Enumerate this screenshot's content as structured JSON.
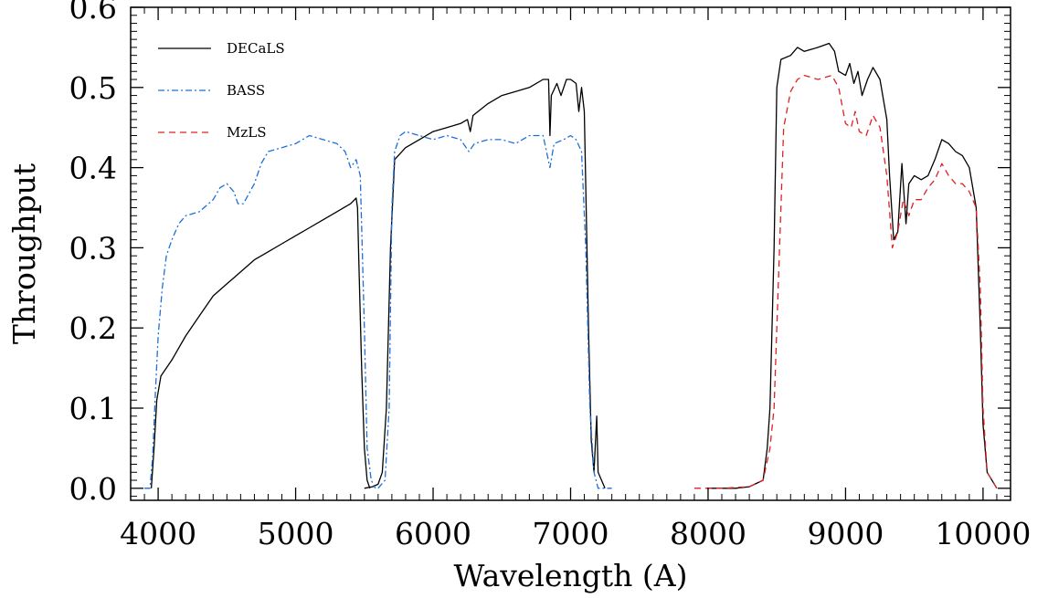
{
  "chart_data": {
    "type": "line",
    "xlabel": "Wavelength (A)",
    "ylabel": "Throughput",
    "xlim": [
      3800,
      10200
    ],
    "ylim": [
      -0.015,
      0.6
    ],
    "x_ticks": [
      4000,
      5000,
      6000,
      7000,
      8000,
      9000,
      10000
    ],
    "x_tick_labels": [
      "4000",
      "5000",
      "6000",
      "7000",
      "8000",
      "9000",
      "10000"
    ],
    "y_ticks": [
      0.0,
      0.1,
      0.2,
      0.3,
      0.4,
      0.5,
      0.6
    ],
    "y_tick_labels": [
      "0.0",
      "0.1",
      "0.2",
      "0.3",
      "0.4",
      "0.5",
      "0.6"
    ],
    "grid": false,
    "legend_position": "top-left",
    "series": [
      {
        "name": "DECaLS",
        "color": "#000000",
        "style": "solid",
        "segments": [
          [
            [
              3950,
              0.0
            ],
            [
              3970,
              0.05
            ],
            [
              3990,
              0.11
            ],
            [
              4020,
              0.14
            ],
            [
              4100,
              0.16
            ],
            [
              4200,
              0.19
            ],
            [
              4300,
              0.215
            ],
            [
              4400,
              0.24
            ],
            [
              4500,
              0.255
            ],
            [
              4600,
              0.27
            ],
            [
              4700,
              0.285
            ],
            [
              4800,
              0.295
            ],
            [
              4900,
              0.305
            ],
            [
              5000,
              0.315
            ],
            [
              5100,
              0.325
            ],
            [
              5200,
              0.335
            ],
            [
              5300,
              0.345
            ],
            [
              5400,
              0.355
            ],
            [
              5440,
              0.362
            ],
            [
              5450,
              0.35
            ],
            [
              5460,
              0.28
            ],
            [
              5480,
              0.15
            ],
            [
              5500,
              0.05
            ],
            [
              5520,
              0.01
            ],
            [
              5540,
              0.0
            ]
          ],
          [
            [
              5500,
              0.0
            ],
            [
              5560,
              0.002
            ],
            [
              5600,
              0.005
            ],
            [
              5630,
              0.02
            ],
            [
              5660,
              0.1
            ],
            [
              5690,
              0.3
            ],
            [
              5720,
              0.41
            ],
            [
              5800,
              0.425
            ],
            [
              5900,
              0.435
            ],
            [
              6000,
              0.445
            ],
            [
              6100,
              0.45
            ],
            [
              6200,
              0.455
            ],
            [
              6250,
              0.46
            ],
            [
              6270,
              0.445
            ],
            [
              6290,
              0.465
            ],
            [
              6400,
              0.48
            ],
            [
              6500,
              0.49
            ],
            [
              6600,
              0.495
            ],
            [
              6700,
              0.5
            ],
            [
              6800,
              0.51
            ],
            [
              6840,
              0.51
            ],
            [
              6850,
              0.44
            ],
            [
              6860,
              0.49
            ],
            [
              6900,
              0.505
            ],
            [
              6930,
              0.49
            ],
            [
              6970,
              0.51
            ],
            [
              7000,
              0.51
            ],
            [
              7040,
              0.505
            ],
            [
              7060,
              0.47
            ],
            [
              7080,
              0.5
            ],
            [
              7100,
              0.47
            ],
            [
              7130,
              0.2
            ],
            [
              7150,
              0.06
            ],
            [
              7170,
              0.02
            ],
            [
              7190,
              0.09
            ],
            [
              7200,
              0.02
            ],
            [
              7250,
              0.0
            ]
          ],
          [
            [
              8000,
              0.0
            ],
            [
              8100,
              0.0
            ],
            [
              8200,
              0.0
            ],
            [
              8300,
              0.002
            ],
            [
              8400,
              0.01
            ],
            [
              8430,
              0.05
            ],
            [
              8450,
              0.1
            ],
            [
              8480,
              0.3
            ],
            [
              8500,
              0.5
            ],
            [
              8530,
              0.535
            ],
            [
              8600,
              0.54
            ],
            [
              8650,
              0.55
            ],
            [
              8700,
              0.545
            ],
            [
              8800,
              0.55
            ],
            [
              8880,
              0.555
            ],
            [
              8920,
              0.545
            ],
            [
              8950,
              0.52
            ],
            [
              9000,
              0.515
            ],
            [
              9030,
              0.53
            ],
            [
              9060,
              0.505
            ],
            [
              9090,
              0.52
            ],
            [
              9120,
              0.49
            ],
            [
              9160,
              0.51
            ],
            [
              9200,
              0.525
            ],
            [
              9250,
              0.51
            ],
            [
              9300,
              0.46
            ],
            [
              9320,
              0.39
            ],
            [
              9350,
              0.31
            ],
            [
              9380,
              0.32
            ],
            [
              9410,
              0.405
            ],
            [
              9440,
              0.33
            ],
            [
              9460,
              0.38
            ],
            [
              9500,
              0.39
            ],
            [
              9550,
              0.385
            ],
            [
              9600,
              0.39
            ],
            [
              9650,
              0.41
            ],
            [
              9700,
              0.435
            ],
            [
              9750,
              0.43
            ],
            [
              9800,
              0.42
            ],
            [
              9850,
              0.415
            ],
            [
              9900,
              0.4
            ],
            [
              9950,
              0.35
            ],
            [
              9980,
              0.2
            ],
            [
              10000,
              0.08
            ],
            [
              10030,
              0.02
            ],
            [
              10100,
              0.0
            ]
          ]
        ]
      },
      {
        "name": "BASS",
        "color": "#1f6fd6",
        "style": "dashdot",
        "segments": [
          [
            [
              3900,
              0.0
            ],
            [
              3940,
              0.0
            ],
            [
              3960,
              0.04
            ],
            [
              3980,
              0.12
            ],
            [
              4000,
              0.19
            ],
            [
              4030,
              0.25
            ],
            [
              4060,
              0.29
            ],
            [
              4100,
              0.31
            ],
            [
              4150,
              0.33
            ],
            [
              4200,
              0.34
            ],
            [
              4300,
              0.345
            ],
            [
              4400,
              0.36
            ],
            [
              4450,
              0.375
            ],
            [
              4500,
              0.38
            ],
            [
              4550,
              0.37
            ],
            [
              4580,
              0.355
            ],
            [
              4620,
              0.355
            ],
            [
              4700,
              0.38
            ],
            [
              4750,
              0.405
            ],
            [
              4800,
              0.42
            ],
            [
              4900,
              0.425
            ],
            [
              5000,
              0.43
            ],
            [
              5100,
              0.44
            ],
            [
              5200,
              0.435
            ],
            [
              5300,
              0.43
            ],
            [
              5360,
              0.42
            ],
            [
              5400,
              0.4
            ],
            [
              5440,
              0.41
            ],
            [
              5470,
              0.39
            ],
            [
              5500,
              0.2
            ],
            [
              5520,
              0.05
            ],
            [
              5550,
              0.01
            ],
            [
              5580,
              0.0
            ]
          ],
          [
            [
              5600,
              0.0
            ],
            [
              5650,
              0.01
            ],
            [
              5680,
              0.1
            ],
            [
              5700,
              0.35
            ],
            [
              5720,
              0.42
            ],
            [
              5760,
              0.44
            ],
            [
              5800,
              0.445
            ],
            [
              5900,
              0.44
            ],
            [
              6000,
              0.435
            ],
            [
              6100,
              0.44
            ],
            [
              6200,
              0.435
            ],
            [
              6260,
              0.42
            ],
            [
              6300,
              0.43
            ],
            [
              6400,
              0.435
            ],
            [
              6500,
              0.435
            ],
            [
              6600,
              0.43
            ],
            [
              6700,
              0.44
            ],
            [
              6800,
              0.44
            ],
            [
              6850,
              0.4
            ],
            [
              6880,
              0.43
            ],
            [
              6950,
              0.435
            ],
            [
              7000,
              0.44
            ],
            [
              7040,
              0.435
            ],
            [
              7080,
              0.42
            ],
            [
              7110,
              0.3
            ],
            [
              7140,
              0.1
            ],
            [
              7170,
              0.02
            ],
            [
              7200,
              0.0
            ],
            [
              7300,
              0.0
            ]
          ]
        ]
      },
      {
        "name": "MzLS",
        "color": "#e02020",
        "style": "dashed",
        "segments": [
          [
            [
              7900,
              0.0
            ],
            [
              8100,
              0.0
            ],
            [
              8300,
              0.002
            ],
            [
              8400,
              0.01
            ],
            [
              8450,
              0.05
            ],
            [
              8480,
              0.1
            ],
            [
              8510,
              0.25
            ],
            [
              8550,
              0.45
            ],
            [
              8600,
              0.495
            ],
            [
              8650,
              0.51
            ],
            [
              8700,
              0.515
            ],
            [
              8800,
              0.51
            ],
            [
              8900,
              0.515
            ],
            [
              8950,
              0.5
            ],
            [
              9000,
              0.455
            ],
            [
              9040,
              0.45
            ],
            [
              9070,
              0.47
            ],
            [
              9100,
              0.445
            ],
            [
              9150,
              0.44
            ],
            [
              9200,
              0.465
            ],
            [
              9250,
              0.45
            ],
            [
              9300,
              0.39
            ],
            [
              9340,
              0.3
            ],
            [
              9380,
              0.32
            ],
            [
              9420,
              0.36
            ],
            [
              9460,
              0.34
            ],
            [
              9500,
              0.36
            ],
            [
              9550,
              0.36
            ],
            [
              9600,
              0.375
            ],
            [
              9650,
              0.385
            ],
            [
              9700,
              0.405
            ],
            [
              9750,
              0.39
            ],
            [
              9800,
              0.38
            ],
            [
              9850,
              0.38
            ],
            [
              9900,
              0.37
            ],
            [
              9950,
              0.35
            ],
            [
              9980,
              0.25
            ],
            [
              10000,
              0.1
            ],
            [
              10030,
              0.02
            ],
            [
              10100,
              0.0
            ]
          ]
        ]
      }
    ]
  }
}
